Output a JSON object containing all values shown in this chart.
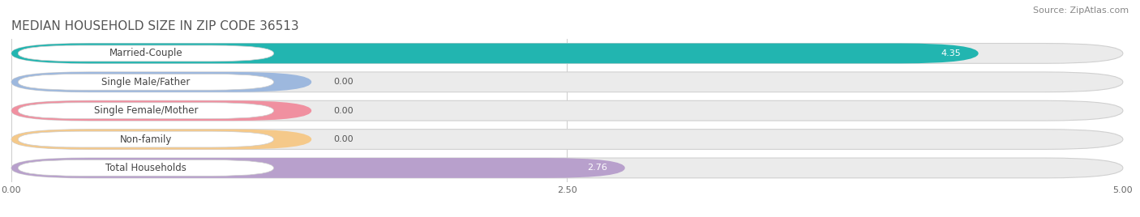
{
  "title": "MEDIAN HOUSEHOLD SIZE IN ZIP CODE 36513",
  "source": "Source: ZipAtlas.com",
  "categories": [
    "Married-Couple",
    "Single Male/Father",
    "Single Female/Mother",
    "Non-family",
    "Total Households"
  ],
  "values": [
    4.35,
    0.0,
    0.0,
    0.0,
    2.76
  ],
  "bar_colors": [
    "#22B5B0",
    "#9DB8DE",
    "#F090A0",
    "#F5C98A",
    "#B8A0CC"
  ],
  "xlim": [
    0,
    5.0
  ],
  "xtick_labels": [
    "0.00",
    "2.50",
    "5.00"
  ],
  "bar_bg_color": "#ebebeb",
  "title_fontsize": 11,
  "source_fontsize": 8,
  "label_fontsize": 8.5,
  "value_fontsize": 8,
  "tick_fontsize": 8,
  "bar_height": 0.7,
  "bar_gap": 1.0
}
